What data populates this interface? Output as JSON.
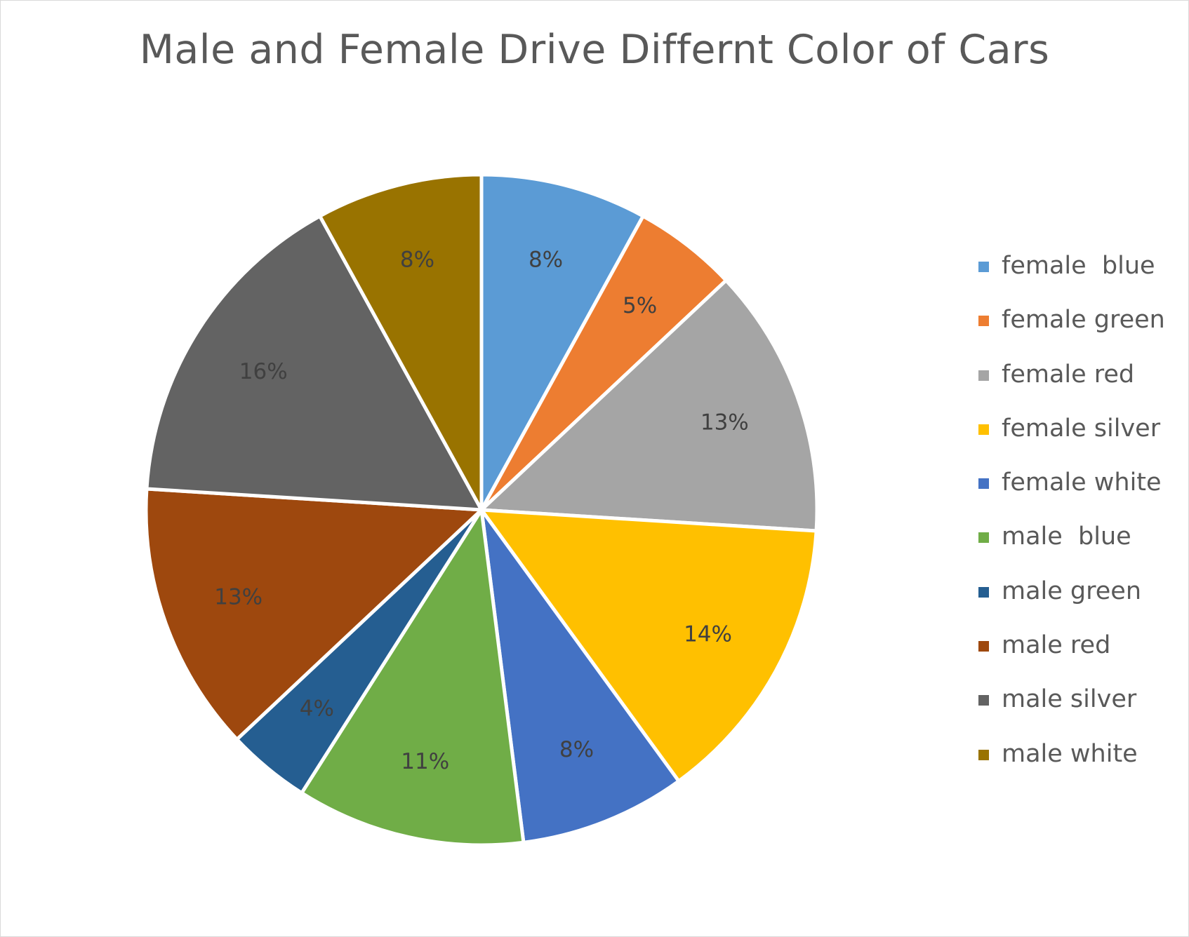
{
  "chart_data": {
    "type": "pie",
    "title": "Male and Female Drive Differnt Color of Cars",
    "categories": [
      "female  blue",
      "female green",
      "female red",
      "female silver",
      "female white",
      "male  blue",
      "male green",
      "male red",
      "male silver",
      "male white"
    ],
    "values": [
      8,
      5,
      13,
      14,
      8,
      11,
      4,
      13,
      16,
      8
    ],
    "data_labels": [
      "8%",
      "5%",
      "13%",
      "14%",
      "8%",
      "11%",
      "4%",
      "13%",
      "16%",
      "8%"
    ],
    "colors": [
      "#5b9bd5",
      "#ed7d31",
      "#a5a5a5",
      "#ffc000",
      "#4472c4",
      "#70ad47",
      "#255e91",
      "#9e480e",
      "#636363",
      "#997300"
    ],
    "start_angle": "12 o'clock",
    "direction": "clockwise",
    "legend": "right"
  }
}
